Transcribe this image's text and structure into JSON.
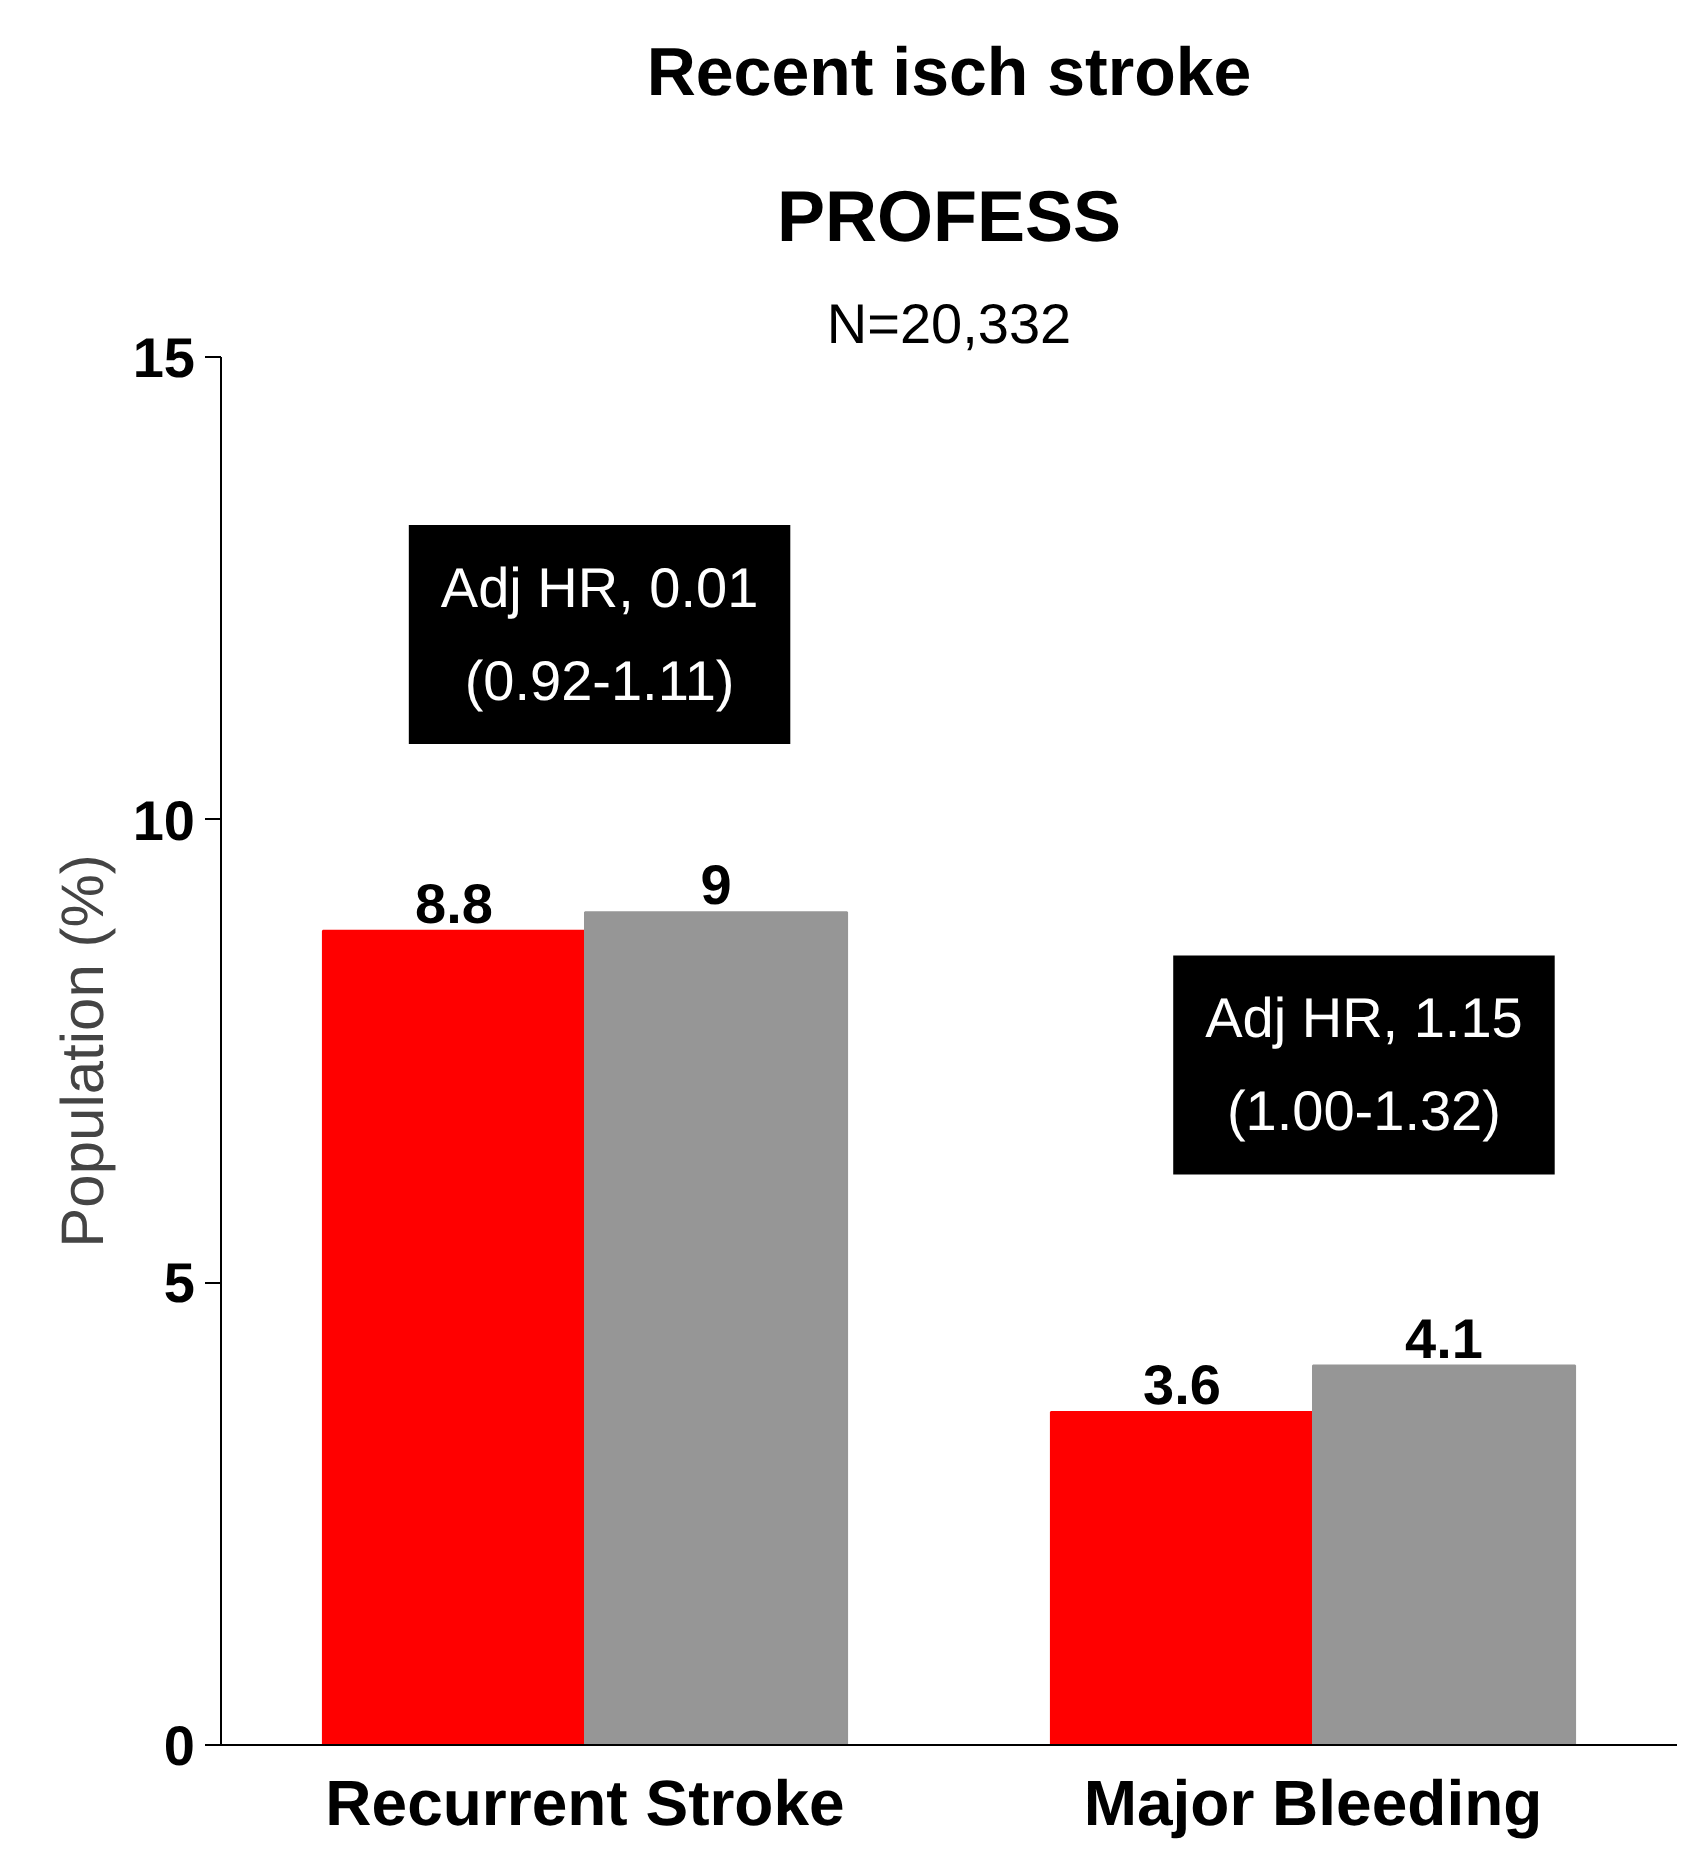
{
  "chart_data": {
    "type": "bar",
    "title": "Recent isch stroke",
    "subtitle": "PROFESS",
    "ylabel": "Population (%)",
    "categories": [
      "Recurrent Stroke",
      "Major Bleeding"
    ],
    "series": [
      {
        "color": "#ff0000",
        "values": [
          8.8,
          3.6
        ]
      },
      {
        "color": "#969696",
        "values": [
          9,
          4.1
        ]
      }
    ],
    "ylim": [
      0,
      15
    ],
    "yticks": [
      0,
      5,
      10,
      15
    ],
    "grid": false,
    "data_labels": true,
    "annotations": [
      "N=20,332",
      "Adj HR, 0.01\n(0.92-1.11)",
      "Adj HR, 1.15\n(1.00-1.32)"
    ]
  }
}
